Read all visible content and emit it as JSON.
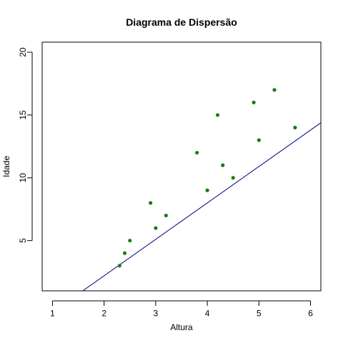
{
  "chart_data": {
    "type": "scatter",
    "title": "Diagrama de Dispersão",
    "xlabel": "Altura",
    "ylabel": "Idade",
    "xlim": [
      0.8,
      6.2
    ],
    "ylim": [
      1.0,
      20.8
    ],
    "x_ticks": [
      "1",
      "2",
      "3",
      "4",
      "5",
      "6"
    ],
    "y_ticks": [
      "5",
      "10",
      "15",
      "20"
    ],
    "points": {
      "x": [
        2.3,
        2.4,
        2.5,
        2.9,
        3.0,
        3.2,
        3.8,
        4.0,
        4.2,
        4.3,
        4.5,
        4.9,
        5.0,
        5.3,
        5.7
      ],
      "y": [
        3,
        4,
        5,
        8,
        6,
        7,
        12,
        9,
        15,
        11,
        10,
        16,
        13,
        17,
        14
      ]
    },
    "regression_line": {
      "intercept": -3.6,
      "slope": 2.9
    },
    "colors": {
      "points": "#1a7a1a",
      "line": "#00008b",
      "axes": "#000000"
    },
    "grid": false,
    "legend": "none"
  }
}
